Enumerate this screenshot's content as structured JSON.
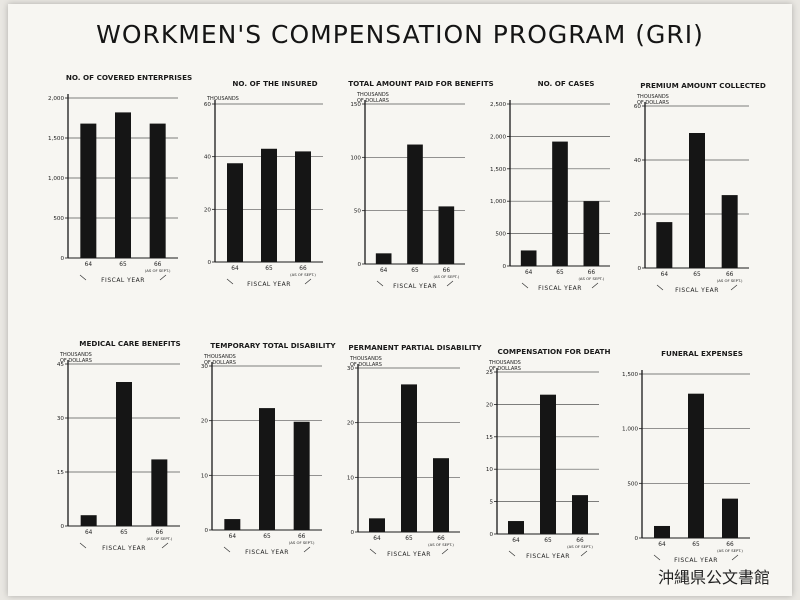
{
  "title": "WORKMEN'S COMPENSATION PROGRAM (GRI)",
  "stamp": "沖縄県公文書館",
  "colors": {
    "bar": "#151515",
    "axis": "#1a1a1a",
    "grid": "#555555",
    "paper": "#f7f6f2"
  },
  "chart_data": [
    {
      "type": "bar",
      "title": "NO. OF COVERED ENTERPRISES",
      "unit": "",
      "xlabel": "FISCAL YEAR",
      "categories": [
        "64",
        "65",
        "66"
      ],
      "category_note": "(AS OF SEPT.)",
      "values": [
        1680,
        1820,
        1680
      ],
      "ylim": [
        0,
        2000
      ],
      "yticks": [
        0,
        500,
        1000,
        1500,
        2000
      ],
      "ytick_labels": [
        "0",
        "500",
        "1,000",
        "1,500",
        "2,000"
      ],
      "grid": true
    },
    {
      "type": "bar",
      "title": "NO. OF THE INSURED",
      "unit": "THOUSANDS",
      "xlabel": "FISCAL YEAR",
      "categories": [
        "64",
        "65",
        "66"
      ],
      "category_note": "(AS OF SEPT.)",
      "values": [
        37.5,
        43,
        42
      ],
      "ylim": [
        0,
        60
      ],
      "yticks": [
        0,
        20,
        40,
        60
      ],
      "ytick_labels": [
        "0",
        "20",
        "40",
        "60"
      ],
      "grid": true
    },
    {
      "type": "bar",
      "title": "TOTAL AMOUNT PAID FOR BENEFITS",
      "unit": "THOUSANDS OF DOLLARS",
      "xlabel": "FISCAL YEAR",
      "categories": [
        "64",
        "65",
        "66"
      ],
      "category_note": "(AS OF SEPT.)",
      "values": [
        10,
        112,
        54
      ],
      "ylim": [
        0,
        150
      ],
      "yticks": [
        0,
        50,
        100,
        150
      ],
      "ytick_labels": [
        "0",
        "50",
        "100",
        "150"
      ],
      "grid": true
    },
    {
      "type": "bar",
      "title": "NO. OF CASES",
      "unit": "",
      "xlabel": "FISCAL YEAR",
      "categories": [
        "64",
        "65",
        "66"
      ],
      "category_note": "(AS OF SEPT.)",
      "values": [
        240,
        1920,
        1000
      ],
      "ylim": [
        0,
        2500
      ],
      "yticks": [
        0,
        500,
        1000,
        1500,
        2000,
        2500
      ],
      "ytick_labels": [
        "0",
        "500",
        "1,000",
        "1,500",
        "2,000",
        "2,500"
      ],
      "grid": true
    },
    {
      "type": "bar",
      "title": "PREMIUM AMOUNT COLLECTED",
      "unit": "THOUSANDS OF DOLLARS",
      "xlabel": "FISCAL YEAR",
      "categories": [
        "64",
        "65",
        "66"
      ],
      "category_note": "(AS OF SEPT.)",
      "values": [
        17,
        50,
        27
      ],
      "ylim": [
        0,
        60
      ],
      "yticks": [
        0,
        20,
        40,
        60
      ],
      "ytick_labels": [
        "0",
        "20",
        "40",
        "60"
      ],
      "grid": true
    },
    {
      "type": "bar",
      "title": "MEDICAL CARE BENEFITS",
      "unit": "THOUSANDS OF DOLLARS",
      "xlabel": "FISCAL YEAR",
      "categories": [
        "64",
        "65",
        "66"
      ],
      "category_note": "(AS OF SEPT.)",
      "values": [
        3,
        40,
        18.5
      ],
      "ylim": [
        0,
        45
      ],
      "yticks": [
        0,
        15,
        30,
        45
      ],
      "ytick_labels": [
        "0",
        "15",
        "30",
        "45"
      ],
      "grid": true
    },
    {
      "type": "bar",
      "title": "TEMPORARY TOTAL DISABILITY",
      "unit": "THOUSANDS OF DOLLARS",
      "xlabel": "FISCAL YEAR",
      "categories": [
        "64",
        "65",
        "66"
      ],
      "category_note": "(AS OF SEPT.)",
      "values": [
        2,
        22.3,
        19.8
      ],
      "ylim": [
        0,
        30
      ],
      "yticks": [
        0,
        10,
        20,
        30
      ],
      "ytick_labels": [
        "0",
        "10",
        "20",
        "30"
      ],
      "grid": true
    },
    {
      "type": "bar",
      "title": "PERMANENT PARTIAL DISABILITY",
      "unit": "THOUSANDS OF DOLLARS",
      "xlabel": "FISCAL YEAR",
      "categories": [
        "64",
        "65",
        "66"
      ],
      "category_note": "(AS OF SEPT.)",
      "values": [
        2.5,
        27,
        13.5
      ],
      "ylim": [
        0,
        30
      ],
      "yticks": [
        0,
        10,
        20,
        30
      ],
      "ytick_labels": [
        "0",
        "10",
        "20",
        "30"
      ],
      "grid": true
    },
    {
      "type": "bar",
      "title": "COMPENSATION FOR DEATH",
      "unit": "THOUSANDS OF DOLLARS",
      "xlabel": "FISCAL YEAR",
      "categories": [
        "64",
        "65",
        "66"
      ],
      "category_note": "(AS OF SEPT.)",
      "values": [
        2,
        21.5,
        6
      ],
      "ylim": [
        0,
        25
      ],
      "yticks": [
        0,
        5,
        10,
        15,
        20,
        25
      ],
      "ytick_labels": [
        "0",
        "5",
        "10",
        "15",
        "20",
        "25"
      ],
      "grid": true
    },
    {
      "type": "bar",
      "title": "FUNERAL EXPENSES",
      "unit": "",
      "xlabel": "FISCAL YEAR",
      "categories": [
        "64",
        "65",
        "66"
      ],
      "category_note": "(AS OF SEPT.)",
      "values": [
        110,
        1320,
        360
      ],
      "ylim": [
        0,
        1500
      ],
      "yticks": [
        0,
        500,
        1000,
        1500
      ],
      "ytick_labels": [
        "0",
        "500",
        "1,000",
        "1,500"
      ],
      "grid": true
    }
  ]
}
